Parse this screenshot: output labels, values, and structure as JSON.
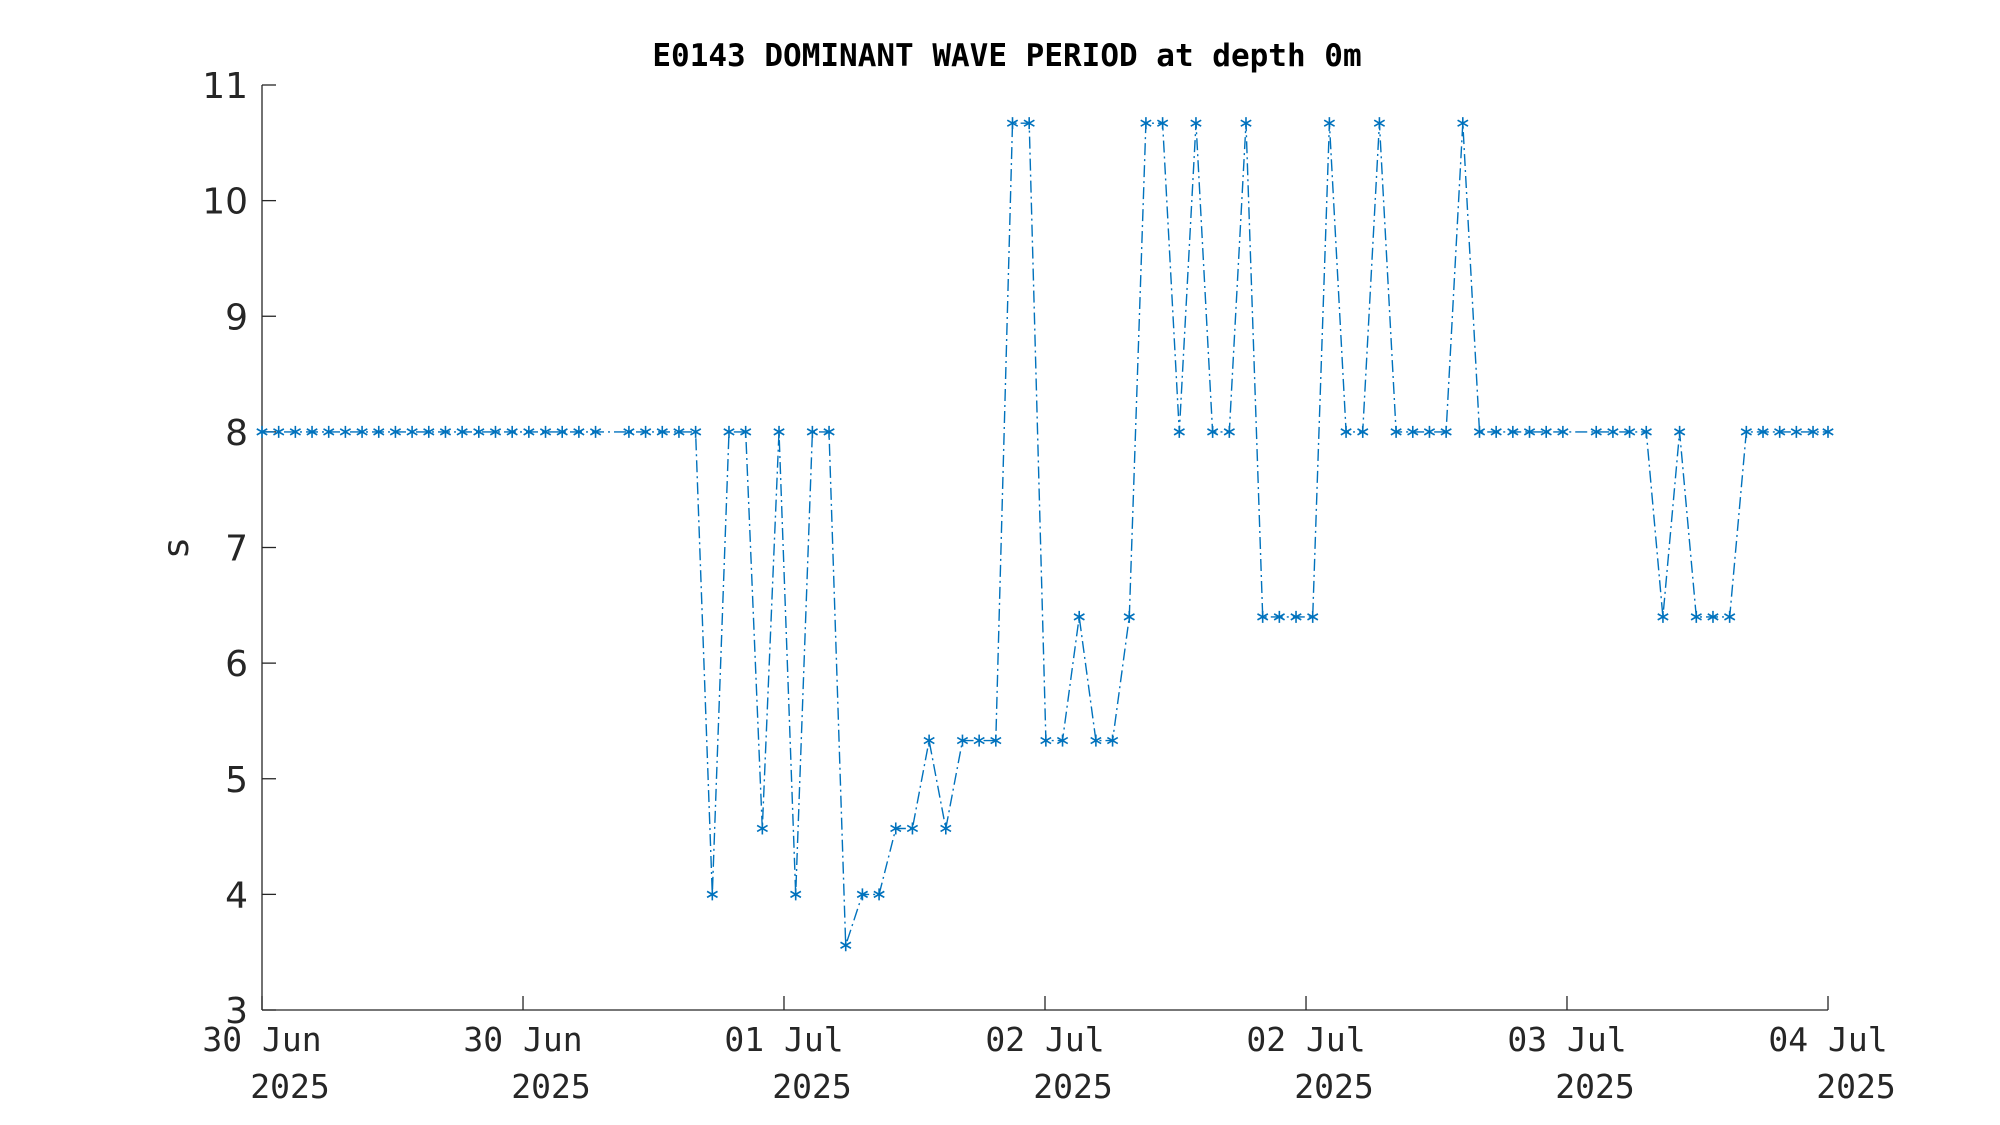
{
  "chart_data": {
    "type": "line",
    "title": "E0143 DOMINANT WAVE PERIOD at depth 0m",
    "xlabel": "",
    "ylabel": "s",
    "ylim": [
      3,
      11
    ],
    "xlim": [
      0,
      4
    ],
    "yticks": [
      3,
      4,
      5,
      6,
      7,
      8,
      9,
      10,
      11
    ],
    "xticks": [
      {
        "pos": 0,
        "line1": "30 Jun",
        "line2": "2025"
      },
      {
        "pos": 0.6667,
        "line1": "30 Jun",
        "line2": "2025"
      },
      {
        "pos": 1.3333,
        "line1": "01 Jul",
        "line2": "2025"
      },
      {
        "pos": 2,
        "line1": "02 Jul",
        "line2": "2025"
      },
      {
        "pos": 2.6667,
        "line1": "02 Jul",
        "line2": "2025"
      },
      {
        "pos": 3.3333,
        "line1": "03 Jul",
        "line2": "2025"
      },
      {
        "pos": 4,
        "line1": "04 Jul",
        "line2": "2025"
      }
    ],
    "marker": "asterisk",
    "line_style": "dash-dot",
    "series": [
      {
        "color": "#0072BD",
        "x": [
          0.0,
          0.0426,
          0.0852,
          0.1278,
          0.1704,
          0.213,
          0.2556,
          0.2982,
          0.3408,
          0.3834,
          0.426,
          0.4686,
          0.5112,
          0.5538,
          0.5964,
          0.639,
          0.6816,
          0.7242,
          0.7668,
          0.8094,
          0.852,
          0.9372,
          0.9798,
          1.0224,
          1.065,
          1.1076,
          1.1502,
          1.1928,
          1.2354,
          1.278,
          1.3206,
          1.3632,
          1.4058,
          1.4484,
          1.491,
          1.5336,
          1.5762,
          1.6188,
          1.6614,
          1.704,
          1.7466,
          1.7892,
          1.8318,
          1.8744,
          1.917,
          1.9596,
          2.0022,
          2.0448,
          2.0874,
          2.13,
          2.1726,
          2.2152,
          2.2578,
          2.3004,
          2.343,
          2.3856,
          2.4282,
          2.4708,
          2.5134,
          2.556,
          2.5986,
          2.6412,
          2.6838,
          2.7264,
          2.769,
          2.8116,
          2.8542,
          2.8968,
          2.9394,
          2.982,
          3.0246,
          3.0672,
          3.1098,
          3.1524,
          3.195,
          3.2376,
          3.2802,
          3.3228,
          3.408,
          3.4506,
          3.4932,
          3.5358,
          3.5784,
          3.621,
          3.6636,
          3.7062,
          3.7488,
          3.7914,
          3.834,
          3.8766,
          3.9192,
          3.9618,
          4.0
        ],
        "values": [
          8,
          8,
          8,
          8,
          8,
          8,
          8,
          8,
          8,
          8,
          8,
          8,
          8,
          8,
          8,
          8,
          8,
          8,
          8,
          8,
          8,
          8,
          8,
          8,
          8,
          8,
          4,
          8,
          8,
          4.57,
          8,
          4,
          8,
          8,
          3.56,
          4,
          4,
          4.57,
          4.57,
          5.33,
          4.57,
          5.33,
          5.33,
          5.33,
          10.67,
          10.67,
          5.33,
          5.33,
          6.4,
          5.33,
          5.33,
          6.4,
          10.67,
          10.67,
          8,
          10.67,
          8,
          8,
          10.67,
          6.4,
          6.4,
          6.4,
          6.4,
          10.67,
          8,
          8,
          10.67,
          8,
          8,
          8,
          8,
          10.67,
          8,
          8,
          8,
          8,
          8,
          8,
          8,
          8,
          8,
          8,
          6.4,
          8,
          6.4,
          6.4,
          6.4,
          8,
          8,
          8,
          8,
          8,
          8
        ]
      }
    ]
  }
}
